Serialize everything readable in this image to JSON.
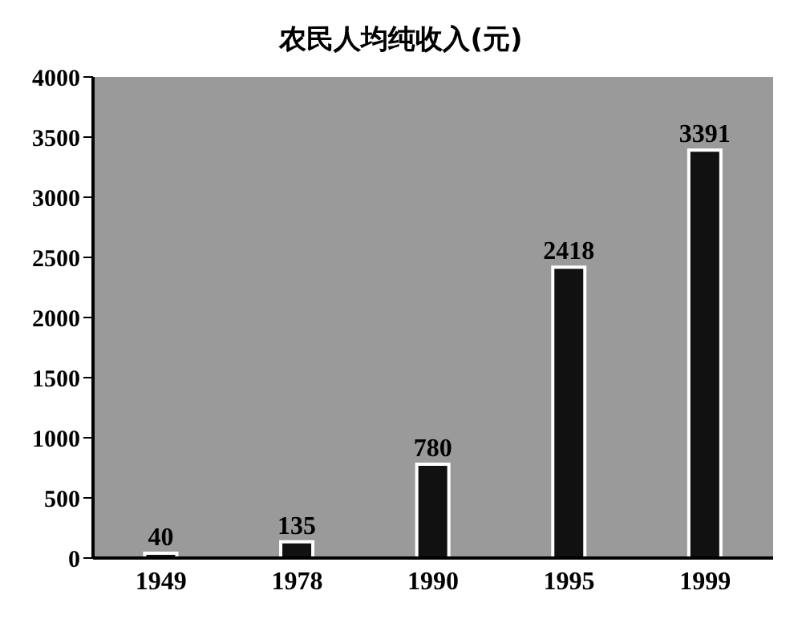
{
  "chart_data": {
    "type": "bar",
    "title": "农民人均纯收入(元)",
    "categories": [
      "1949",
      "1978",
      "1990",
      "1995",
      "1999"
    ],
    "values": [
      40,
      135,
      780,
      2418,
      3391
    ],
    "color": "#111111",
    "ylim": [
      0,
      4000
    ],
    "yticks": [
      0,
      500,
      1000,
      1500,
      2000,
      2500,
      3000,
      3500,
      4000
    ],
    "data_labels": true
  }
}
